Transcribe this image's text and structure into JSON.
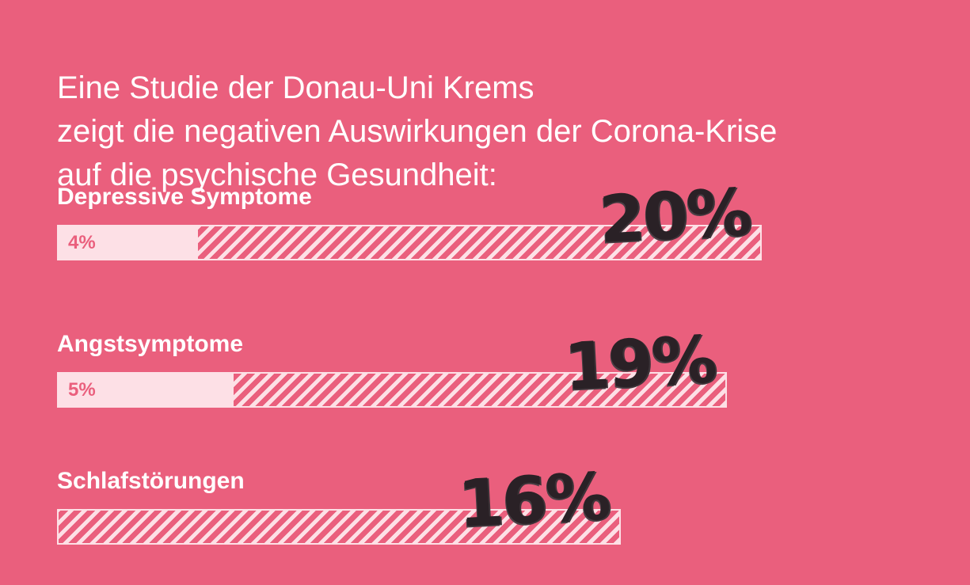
{
  "title_lines": [
    "Eine Studie der Donau-Uni Krems",
    "zeigt die negativen Auswirkungen der Corona-Krise",
    "auf die psychische Gesundheit:"
  ],
  "chart_data": {
    "type": "bar",
    "orientation": "horizontal",
    "categories": [
      "Depressive Symptome",
      "Angstsymptome",
      "Schlafstörungen"
    ],
    "series": [
      {
        "values": [
          4,
          5,
          null
        ],
        "labels": [
          "4%",
          "5%",
          ""
        ]
      },
      {
        "values": [
          20,
          19,
          16
        ],
        "labels": [
          "20%",
          "19%",
          "16%"
        ]
      }
    ],
    "xlim": [
      0,
      20
    ],
    "grid": false,
    "colors": {
      "background": "#ea5f7d",
      "bar": "#fde0e6",
      "value": "#2a2126"
    }
  }
}
